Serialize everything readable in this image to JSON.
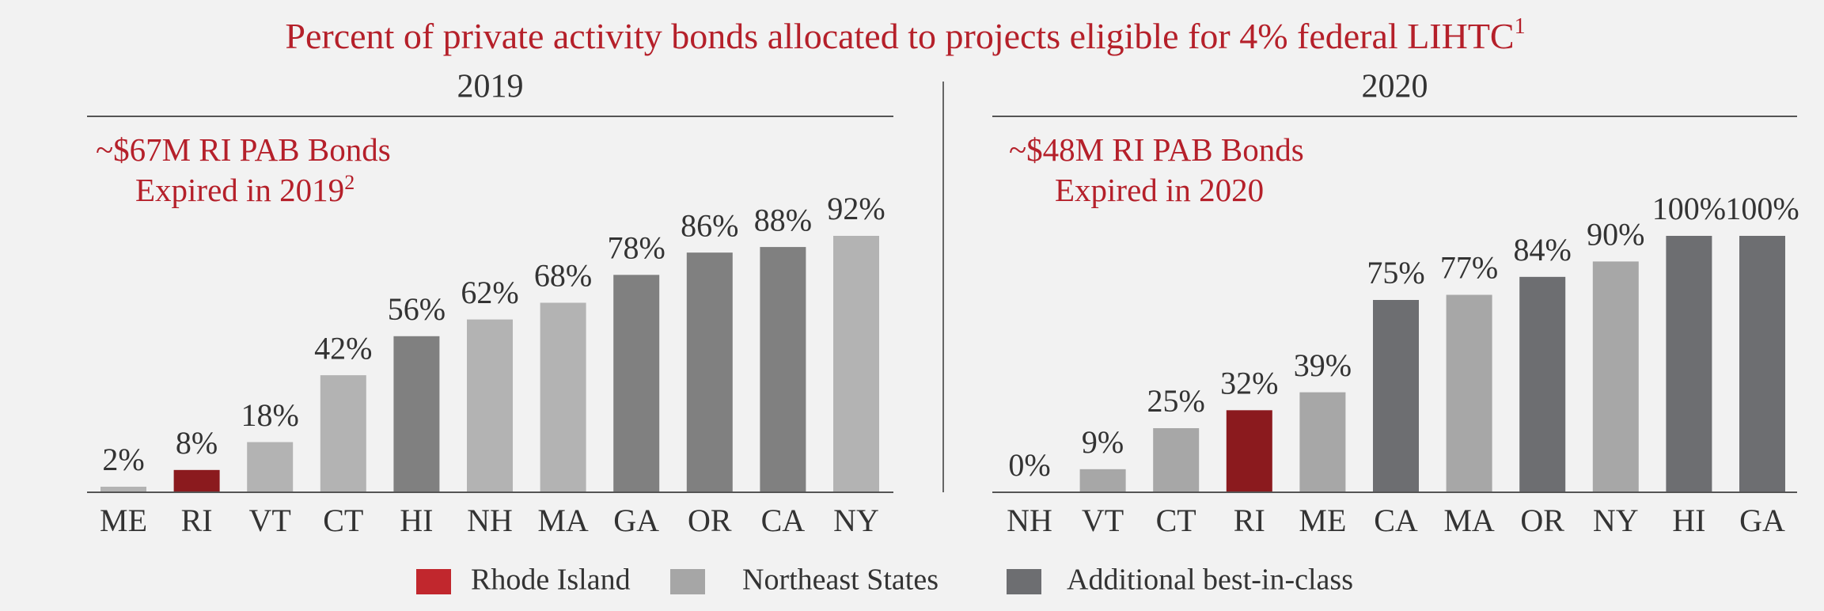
{
  "title": "Percent of private activity bonds allocated to projects eligible for 4% federal LIHTC",
  "title_footnote": "1",
  "legend": [
    {
      "name": "Rhode Island",
      "color": "#c1272d"
    },
    {
      "name": "Northeast States",
      "color": "#a6a6a6"
    },
    {
      "name": "Additional best-in-class",
      "color": "#6d6e71"
    }
  ],
  "chart_data": [
    {
      "type": "bar",
      "title": "2019",
      "annotation": [
        "~$67M RI PAB Bonds",
        "Expired in 2019"
      ],
      "annotation_footnote": "2",
      "categories": [
        "ME",
        "RI",
        "VT",
        "CT",
        "HI",
        "NH",
        "MA",
        "GA",
        "OR",
        "CA",
        "NY"
      ],
      "values": [
        2,
        8,
        18,
        42,
        56,
        62,
        68,
        78,
        86,
        88,
        92
      ],
      "value_labels": [
        "2%",
        "8%",
        "18%",
        "42%",
        "56%",
        "62%",
        "68%",
        "78%",
        "86%",
        "88%",
        "92%"
      ],
      "colors": [
        "#b3b3b3",
        "#8b1a1e",
        "#b3b3b3",
        "#b3b3b3",
        "#808080",
        "#b3b3b3",
        "#b3b3b3",
        "#808080",
        "#808080",
        "#808080",
        "#b3b3b3"
      ],
      "ylim": [
        0,
        92
      ]
    },
    {
      "type": "bar",
      "title": "2020",
      "annotation": [
        "~$48M RI PAB Bonds",
        "Expired in 2020"
      ],
      "categories": [
        "NH",
        "VT",
        "CT",
        "RI",
        "ME",
        "CA",
        "MA",
        "OR",
        "NY",
        "HI",
        "GA"
      ],
      "values": [
        0,
        9,
        25,
        32,
        39,
        75,
        77,
        84,
        90,
        100,
        100
      ],
      "value_labels": [
        "0%",
        "9%",
        "25%",
        "32%",
        "39%",
        "75%",
        "77%",
        "84%",
        "90%",
        "100%",
        "100%"
      ],
      "colors": [
        "#a7a7a7",
        "#a7a7a7",
        "#a7a7a7",
        "#8b1a1e",
        "#a7a7a7",
        "#6d6e71",
        "#a7a7a7",
        "#6d6e71",
        "#a7a7a7",
        "#6d6e71",
        "#6d6e71"
      ],
      "ylim": [
        0,
        100
      ]
    }
  ]
}
